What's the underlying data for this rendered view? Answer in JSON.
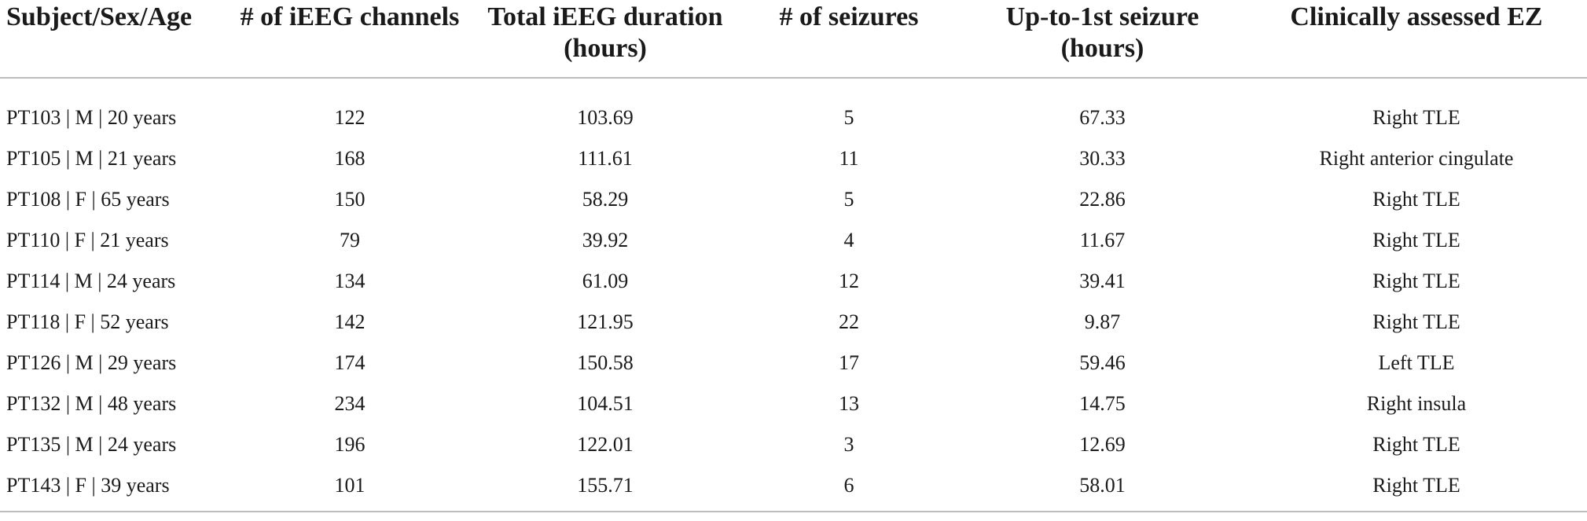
{
  "table": {
    "headers": [
      [
        "Subject/Sex/Age"
      ],
      [
        "# of iEEG channels"
      ],
      [
        "Total iEEG duration",
        "(hours)"
      ],
      [
        "# of seizures"
      ],
      [
        "Up-to-1st seizure",
        "(hours)"
      ],
      [
        "Clinically assessed EZ"
      ]
    ],
    "rows": [
      [
        "PT103 | M | 20 years",
        "122",
        "103.69",
        "5",
        "67.33",
        "Right TLE"
      ],
      [
        "PT105 | M | 21 years",
        "168",
        "111.61",
        "11",
        "30.33",
        "Right anterior cingulate"
      ],
      [
        "PT108 | F | 65 years",
        "150",
        "58.29",
        "5",
        "22.86",
        "Right TLE"
      ],
      [
        "PT110 | F | 21 years",
        "79",
        "39.92",
        "4",
        "11.67",
        "Right TLE"
      ],
      [
        "PT114 | M | 24 years",
        "134",
        "61.09",
        "12",
        "39.41",
        "Right TLE"
      ],
      [
        "PT118 | F | 52 years",
        "142",
        "121.95",
        "22",
        "9.87",
        "Right TLE"
      ],
      [
        "PT126 | M | 29 years",
        "174",
        "150.58",
        "17",
        "59.46",
        "Left TLE"
      ],
      [
        "PT132 | M | 48 years",
        "234",
        "104.51",
        "13",
        "14.75",
        "Right insula"
      ],
      [
        "PT135 | M | 24 years",
        "196",
        "122.01",
        "3",
        "12.69",
        "Right TLE"
      ],
      [
        "PT143 | F | 39 years",
        "101",
        "155.71",
        "6",
        "58.01",
        "Right TLE"
      ]
    ]
  }
}
